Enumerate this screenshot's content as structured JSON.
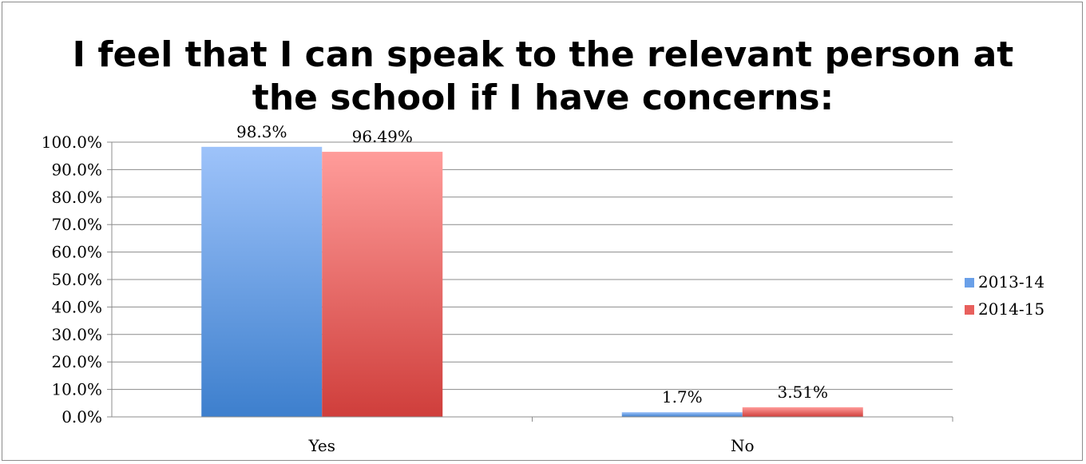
{
  "chart_data": {
    "type": "bar",
    "title_lines": [
      "I feel that I can speak to the relevant person at",
      "the school if I have concerns:"
    ],
    "categories": [
      "Yes",
      "No"
    ],
    "series": [
      {
        "name": "2013-14",
        "values": [
          98.3,
          1.7
        ],
        "labels": [
          "98.3%",
          "1.7%"
        ],
        "color_top": "#9ec3fa",
        "color_bottom": "#3d7fcd",
        "legend_color": "#6aa0e8"
      },
      {
        "name": "2014-15",
        "values": [
          96.49,
          3.51
        ],
        "labels": [
          "96.49%",
          "3.51%"
        ],
        "color_top": "#ff9c9a",
        "color_bottom": "#cf3e3b",
        "legend_color": "#e8605d"
      }
    ],
    "ylim": [
      0,
      100
    ],
    "yticks": [
      0,
      10,
      20,
      30,
      40,
      50,
      60,
      70,
      80,
      90,
      100
    ],
    "ytick_labels": [
      "0.0%",
      "10.0%",
      "20.0%",
      "30.0%",
      "40.0%",
      "50.0%",
      "60.0%",
      "70.0%",
      "80.0%",
      "90.0%",
      "100.0%"
    ],
    "grid": true,
    "legend_position": "right"
  }
}
